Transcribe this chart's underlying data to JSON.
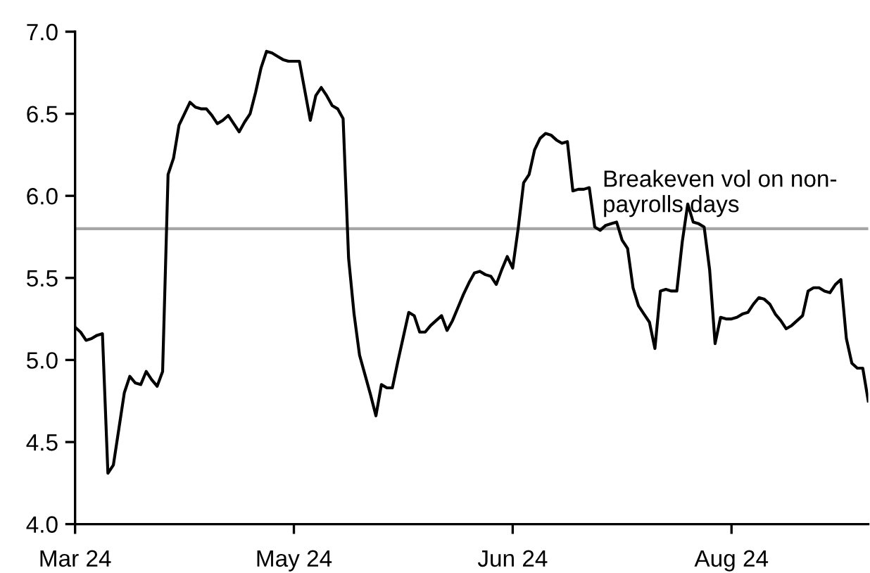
{
  "chart_data": {
    "type": "line",
    "categories": [
      "Mar 24",
      null,
      null,
      null,
      null,
      null,
      null,
      null,
      null,
      null,
      null,
      null,
      null,
      null,
      null,
      null,
      null,
      null,
      null,
      null,
      null,
      null,
      null,
      null,
      null,
      null,
      null,
      null,
      null,
      null,
      null,
      null,
      null,
      null,
      null,
      null,
      null,
      null,
      null,
      null,
      "May 24",
      null,
      null,
      null,
      null,
      null,
      null,
      null,
      null,
      null,
      null,
      null,
      null,
      null,
      null,
      null,
      null,
      null,
      null,
      null,
      null,
      null,
      null,
      null,
      null,
      null,
      null,
      null,
      null,
      null,
      null,
      null,
      null,
      null,
      null,
      null,
      null,
      null,
      null,
      null,
      "Jun 24",
      null,
      null,
      null,
      null,
      null,
      null,
      null,
      null,
      null,
      null,
      null,
      null,
      null,
      null,
      null,
      null,
      null,
      null,
      null,
      null,
      null,
      null,
      null,
      null,
      null,
      null,
      null,
      null,
      null,
      null,
      null,
      null,
      null,
      null,
      null,
      null,
      null,
      null,
      null,
      "Aug 24",
      null,
      null,
      null,
      null,
      null,
      null,
      null,
      null,
      null,
      null,
      null,
      null,
      null,
      null,
      null,
      null,
      null,
      null,
      null,
      null,
      null,
      null,
      null,
      null,
      null
    ],
    "series": [
      {
        "color": "#000000",
        "values": [
          5.2,
          5.17,
          5.12,
          5.13,
          5.15,
          5.16,
          4.31,
          4.36,
          4.58,
          4.8,
          4.9,
          4.86,
          4.85,
          4.93,
          4.88,
          4.84,
          4.93,
          6.13,
          6.23,
          6.43,
          6.5,
          6.57,
          6.54,
          6.53,
          6.53,
          6.49,
          6.44,
          6.46,
          6.49,
          6.44,
          6.39,
          6.45,
          6.5,
          6.63,
          6.78,
          6.88,
          6.87,
          6.85,
          6.83,
          6.82,
          6.82,
          6.82,
          6.64,
          6.46,
          6.61,
          6.66,
          6.61,
          6.55,
          6.53,
          6.47,
          5.62,
          5.28,
          5.03,
          4.91,
          4.79,
          4.66,
          4.85,
          4.83,
          4.83,
          4.99,
          5.14,
          5.29,
          5.27,
          5.17,
          5.17,
          5.21,
          5.24,
          5.27,
          5.18,
          5.24,
          5.32,
          5.4,
          5.47,
          5.53,
          5.54,
          5.52,
          5.51,
          5.46,
          5.55,
          5.63,
          5.56,
          5.8,
          6.08,
          6.13,
          6.28,
          6.35,
          6.38,
          6.37,
          6.34,
          6.32,
          6.33,
          6.03,
          6.04,
          6.04,
          6.05,
          5.81,
          5.79,
          5.82,
          5.83,
          5.84,
          5.73,
          5.68,
          5.44,
          5.33,
          5.28,
          5.23,
          5.07,
          5.42,
          5.43,
          5.42,
          5.42,
          5.72,
          5.95,
          5.84,
          5.83,
          5.81,
          5.55,
          5.1,
          5.26,
          5.25,
          5.25,
          5.26,
          5.28,
          5.29,
          5.34,
          5.38,
          5.37,
          5.34,
          5.28,
          5.24,
          5.19,
          5.21,
          5.24,
          5.27,
          5.42,
          5.44,
          5.44,
          5.42,
          5.41,
          5.46,
          5.49,
          5.13,
          4.98,
          4.95,
          4.95,
          4.75
        ]
      }
    ],
    "ylim": [
      4.0,
      7.0
    ],
    "yticks": [
      {
        "value": 4.0,
        "label": "4.0"
      },
      {
        "value": 4.5,
        "label": "4.5"
      },
      {
        "value": 5.0,
        "label": "5.0"
      },
      {
        "value": 5.5,
        "label": "5.5"
      },
      {
        "value": 6.0,
        "label": "6.0"
      },
      {
        "value": 6.5,
        "label": "6.5"
      },
      {
        "value": 7.0,
        "label": "7.0"
      }
    ],
    "ref_lines": [
      {
        "axis": "y",
        "value": 5.8,
        "label": "Breakeven vol on non-\npayrolls days",
        "color": "#a6a6a6"
      }
    ],
    "grid": false,
    "marker": "none",
    "line_style": "solid"
  }
}
